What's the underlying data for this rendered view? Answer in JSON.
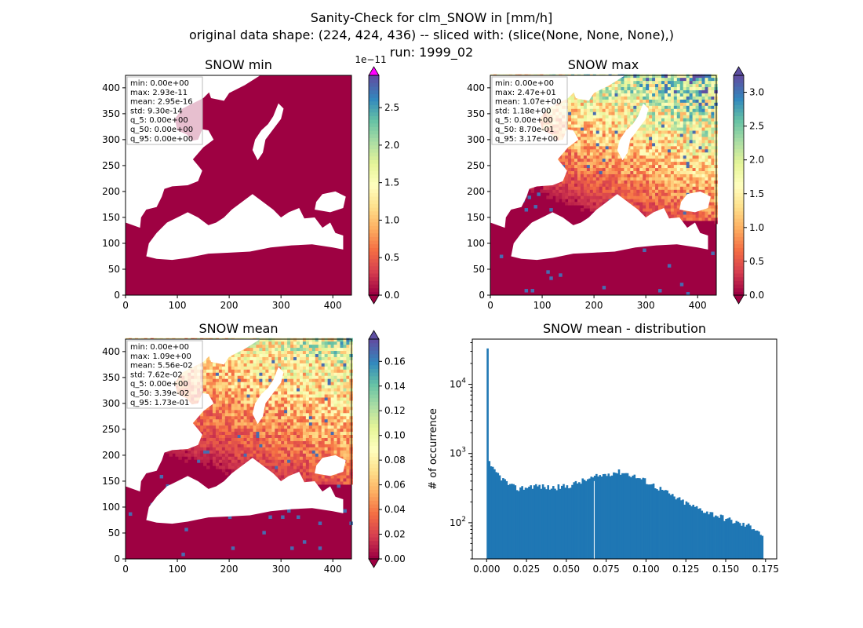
{
  "figure": {
    "title_lines": [
      "Sanity-Check for clm_SNOW in [mm/h]",
      "original data shape: (224, 424, 436) -- sliced with: (slice(None, None, None),)",
      "run: 1999_02"
    ]
  },
  "panels": [
    {
      "id": "min",
      "title": "SNOW min",
      "x_ticks": [
        "0",
        "100",
        "200",
        "300",
        "400"
      ],
      "y_ticks": [
        "0",
        "50",
        "100",
        "150",
        "200",
        "250",
        "300",
        "350",
        "400"
      ],
      "stats": [
        "min: 0.00e+00",
        "max: 2.93e-11",
        "mean: 2.95e-16",
        "std: 9.30e-14",
        "q_5: 0.00e+00",
        "q_50: 0.00e+00",
        "q_95: 0.00e+00"
      ],
      "colorbar": {
        "ticks": [
          "0.0",
          "0.5",
          "1.0",
          "1.5",
          "2.0",
          "2.5"
        ],
        "max": 2.93,
        "offset_label": "1e−11",
        "extend_top_color": "#ff00ff"
      },
      "intensity": 0.0
    },
    {
      "id": "max",
      "title": "SNOW max",
      "x_ticks": [
        "0",
        "100",
        "200",
        "300",
        "400"
      ],
      "y_ticks": [
        "0",
        "50",
        "100",
        "150",
        "200",
        "250",
        "300",
        "350",
        "400"
      ],
      "stats": [
        "min: 0.00e+00",
        "max: 2.47e+01",
        "mean: 1.07e+00",
        "std: 1.18e+00",
        "q_5: 0.00e+00",
        "q_50: 8.70e-01",
        "q_95: 3.17e+00"
      ],
      "colorbar": {
        "ticks": [
          "0.0",
          "0.5",
          "1.0",
          "1.5",
          "2.0",
          "2.5",
          "3.0"
        ],
        "max": 3.25,
        "offset_label": "",
        "extend_top_color": "#5e4fa2"
      },
      "intensity": 1.0
    },
    {
      "id": "mean",
      "title": "SNOW mean",
      "x_ticks": [
        "0",
        "100",
        "200",
        "300",
        "400"
      ],
      "y_ticks": [
        "0",
        "50",
        "100",
        "150",
        "200",
        "250",
        "300",
        "350",
        "400"
      ],
      "stats": [
        "min: 0.00e+00",
        "max: 1.09e+00",
        "mean: 5.56e-02",
        "std: 7.62e-02",
        "q_5: 0.00e+00",
        "q_50: 3.39e-02",
        "q_95: 1.73e-01"
      ],
      "colorbar": {
        "ticks": [
          "0.00",
          "0.02",
          "0.04",
          "0.06",
          "0.08",
          "0.10",
          "0.12",
          "0.14",
          "0.16"
        ],
        "max": 0.178,
        "offset_label": "",
        "extend_top_color": "#5e4fa2"
      },
      "intensity": 0.8
    }
  ],
  "chart_data": [
    {
      "type": "heatmap",
      "title": "SNOW min",
      "xlim": [
        0,
        436
      ],
      "ylim": [
        0,
        424
      ],
      "colormap": "Spectral",
      "color_range": [
        0,
        2.93e-11
      ],
      "colorbar_ticks": [
        0,
        5e-12,
        1e-11,
        1.5e-11,
        2e-11,
        2.5e-11
      ]
    },
    {
      "type": "heatmap",
      "title": "SNOW max",
      "xlim": [
        0,
        436
      ],
      "ylim": [
        0,
        424
      ],
      "colormap": "Spectral",
      "color_range": [
        0,
        3.25
      ],
      "colorbar_ticks": [
        0,
        0.5,
        1.0,
        1.5,
        2.0,
        2.5,
        3.0
      ]
    },
    {
      "type": "heatmap",
      "title": "SNOW mean",
      "xlim": [
        0,
        436
      ],
      "ylim": [
        0,
        424
      ],
      "colormap": "Spectral",
      "color_range": [
        0,
        0.178
      ],
      "colorbar_ticks": [
        0,
        0.02,
        0.04,
        0.06,
        0.08,
        0.1,
        0.12,
        0.14,
        0.16
      ]
    },
    {
      "type": "bar",
      "title": "SNOW mean - distribution",
      "ylabel": "# of occurrence",
      "xlabel": "",
      "y_scale": "log",
      "xlim": [
        -0.009,
        0.182
      ],
      "ylim": [
        30,
        45000
      ],
      "x_ticks": [
        "0.000",
        "0.025",
        "0.050",
        "0.075",
        "0.100",
        "0.125",
        "0.150",
        "0.175"
      ],
      "y_ticks": [
        "10^2",
        "10^3",
        "10^4"
      ],
      "bar_color": "#1f77b4",
      "bin_range": [
        0,
        0.1735
      ],
      "anchors": [
        [
          0.0,
          33000
        ],
        [
          0.0012,
          780
        ],
        [
          0.0025,
          620
        ],
        [
          0.005,
          560
        ],
        [
          0.01,
          430
        ],
        [
          0.015,
          340
        ],
        [
          0.02,
          310
        ],
        [
          0.03,
          345
        ],
        [
          0.04,
          320
        ],
        [
          0.05,
          335
        ],
        [
          0.06,
          400
        ],
        [
          0.07,
          470
        ],
        [
          0.08,
          540
        ],
        [
          0.085,
          540
        ],
        [
          0.09,
          500
        ],
        [
          0.1,
          400
        ],
        [
          0.11,
          300
        ],
        [
          0.12,
          220
        ],
        [
          0.13,
          170
        ],
        [
          0.14,
          140
        ],
        [
          0.15,
          115
        ],
        [
          0.16,
          95
        ],
        [
          0.165,
          90
        ],
        [
          0.17,
          80
        ],
        [
          0.1735,
          62
        ]
      ]
    }
  ]
}
